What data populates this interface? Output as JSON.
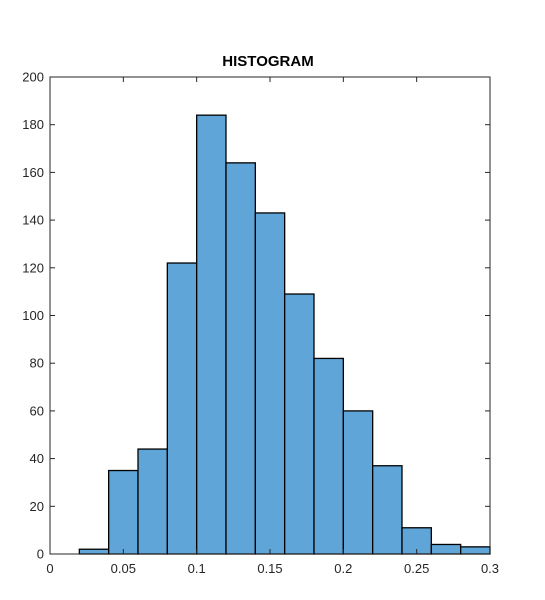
{
  "chart_data": {
    "type": "histogram",
    "title": "HISTOGRAM",
    "xlabel": "",
    "ylabel": "",
    "xlim": [
      0,
      0.3
    ],
    "ylim": [
      0,
      200
    ],
    "xticks": [
      0,
      0.05,
      0.1,
      0.15,
      0.2,
      0.25,
      0.3
    ],
    "xtick_labels": [
      "0",
      "0.05",
      "0.1",
      "0.15",
      "0.2",
      "0.25",
      "0.3"
    ],
    "yticks": [
      0,
      20,
      40,
      60,
      80,
      100,
      120,
      140,
      160,
      180,
      200
    ],
    "ytick_labels": [
      "0",
      "20",
      "40",
      "60",
      "80",
      "100",
      "120",
      "140",
      "160",
      "180",
      "200"
    ],
    "bin_width": 0.02,
    "bins": [
      {
        "x0": 0.02,
        "x1": 0.04,
        "count": 2
      },
      {
        "x0": 0.04,
        "x1": 0.06,
        "count": 35
      },
      {
        "x0": 0.06,
        "x1": 0.08,
        "count": 44
      },
      {
        "x0": 0.08,
        "x1": 0.1,
        "count": 122
      },
      {
        "x0": 0.1,
        "x1": 0.12,
        "count": 184
      },
      {
        "x0": 0.12,
        "x1": 0.14,
        "count": 164
      },
      {
        "x0": 0.14,
        "x1": 0.16,
        "count": 143
      },
      {
        "x0": 0.16,
        "x1": 0.18,
        "count": 109
      },
      {
        "x0": 0.18,
        "x1": 0.2,
        "count": 82
      },
      {
        "x0": 0.2,
        "x1": 0.22,
        "count": 60
      },
      {
        "x0": 0.22,
        "x1": 0.24,
        "count": 37
      },
      {
        "x0": 0.24,
        "x1": 0.26,
        "count": 11
      },
      {
        "x0": 0.26,
        "x1": 0.28,
        "count": 4
      },
      {
        "x0": 0.28,
        "x1": 0.3,
        "count": 3
      }
    ],
    "bar_color": "#5fa5d8",
    "bar_edge_color": "#000000",
    "grid": false,
    "box": true
  }
}
